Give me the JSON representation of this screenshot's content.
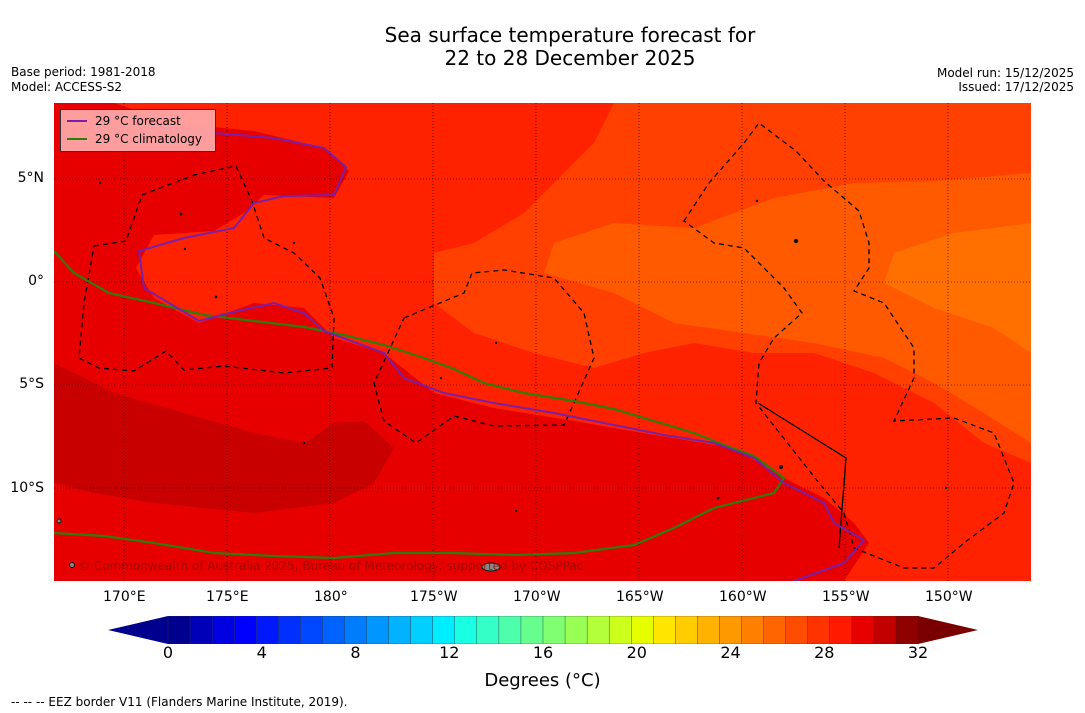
{
  "header": {
    "title_line1": "Sea surface temperature forecast for",
    "title_line2": "22 to 28 December 2025",
    "base_period": "Base period: 1981-2018",
    "model": "Model: ACCESS-S2",
    "model_run": "Model run: 15/12/2025",
    "issued": "Issued: 17/12/2025"
  },
  "map": {
    "lat_labels": [
      "5°N",
      "0°",
      "5°S",
      "10°S"
    ],
    "lon_labels": [
      "170°E",
      "175°E",
      "180°",
      "175°W",
      "170°W",
      "165°W",
      "160°W",
      "155°W",
      "150°W"
    ],
    "copyright": "© Commonwealth of Australia 2025, Bureau of Meteorology, supported by COSPPac"
  },
  "legend": {
    "forecast_label": "29 °C  forecast",
    "climatology_label": "29 °C  climatology",
    "forecast_color": "#7a1fa8",
    "climatology_color": "#2e7d0a"
  },
  "colorbar": {
    "ticks": [
      "0",
      "4",
      "8",
      "12",
      "16",
      "20",
      "24",
      "28",
      "32"
    ],
    "label": "Degrees (°C)",
    "colors": [
      "#00008f",
      "#0000b8",
      "#0000e0",
      "#0000ff",
      "#0018ff",
      "#0030ff",
      "#0048ff",
      "#0062ff",
      "#007cff",
      "#0096ff",
      "#00b2ff",
      "#00cfff",
      "#00ecff",
      "#1affe3",
      "#33ffc7",
      "#4dffaa",
      "#66ff8e",
      "#80ff72",
      "#99ff55",
      "#b3ff39",
      "#ccff1c",
      "#e6ff00",
      "#ffe600",
      "#ffcc00",
      "#ffb300",
      "#ff9900",
      "#ff8000",
      "#ff6600",
      "#ff4d00",
      "#ff3300",
      "#ff1a00",
      "#e60000",
      "#c20000",
      "#8f0000"
    ],
    "under_color": "#00008f",
    "over_color": "#7a0000"
  },
  "footer": {
    "eez_note": "--  --  -- EEZ border V11 (Flanders Marine Institute, 2019)."
  }
}
